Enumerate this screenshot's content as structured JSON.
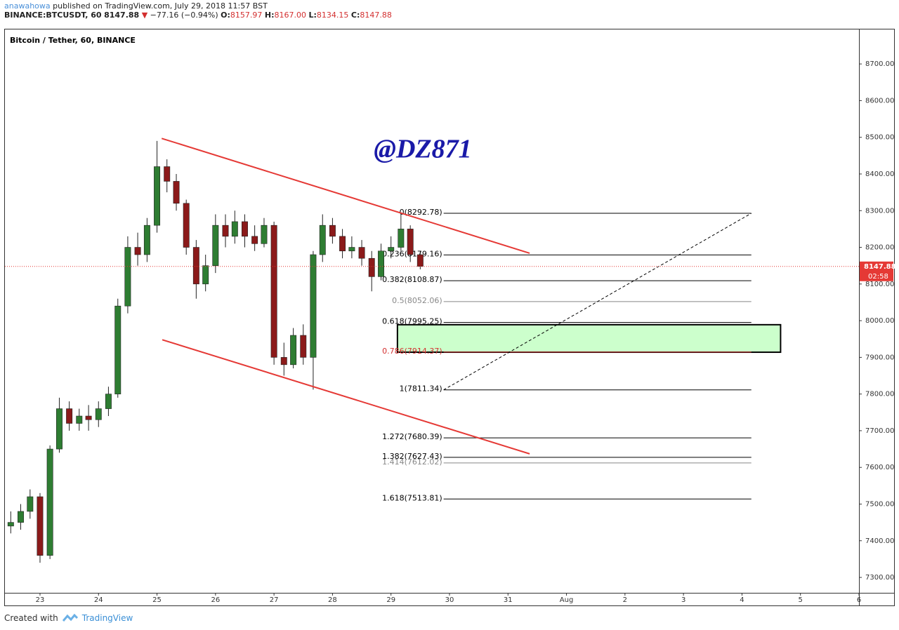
{
  "header": {
    "author": "anawahowa",
    "published": "published on TradingView.com, July 29, 2018 11:57 BST",
    "symbol": "BINANCE:BTCUSDT, 60",
    "last": "8147.88",
    "arrow": "▼",
    "change": "−77.16 (−0.94%)",
    "o_label": "O:",
    "open": "8157.97",
    "h_label": "H:",
    "high": "8167.00",
    "l_label": "L:",
    "low": "8134.15",
    "c_label": "C:",
    "close": "8147.88"
  },
  "footer": {
    "created": "Created with",
    "brand": "TradingView"
  },
  "chart_data": {
    "type": "candlestick",
    "title": "Bitcoin / Tether, 60, BINANCE",
    "watermark": "@DZ871",
    "up_color": "#2e7d32",
    "down_color": "#8b1a1a",
    "x": [
      -0.5,
      -0.33,
      -0.17,
      0,
      0.17,
      0.33,
      0.5,
      0.67,
      0.83,
      1,
      1.17,
      1.33,
      1.5,
      1.67,
      1.83,
      2,
      2.17,
      2.33,
      2.5,
      2.67,
      2.83,
      3,
      3.17,
      3.33,
      3.5,
      3.67,
      3.83,
      4,
      4.17,
      4.33,
      4.5,
      4.67,
      4.83,
      5,
      5.17,
      5.33,
      5.5,
      5.67,
      5.83,
      6,
      6.17,
      6.33,
      6.5
    ],
    "open": [
      7440,
      7450,
      7480,
      7520,
      7360,
      7650,
      7760,
      7720,
      7740,
      7730,
      7760,
      7800,
      8040,
      8200,
      8180,
      8260,
      8420,
      8380,
      8320,
      8200,
      8100,
      8150,
      8260,
      8230,
      8270,
      8230,
      8210,
      8260,
      7900,
      7880,
      7960,
      7900,
      8180,
      8260,
      8230,
      8190,
      8200,
      8170,
      8120,
      8190,
      8200,
      8250,
      8180
    ],
    "high": [
      7480,
      7500,
      7540,
      7530,
      7660,
      7790,
      7780,
      7760,
      7770,
      7780,
      7820,
      8060,
      8230,
      8240,
      8280,
      8490,
      8440,
      8400,
      8330,
      8220,
      8180,
      8290,
      8290,
      8300,
      8290,
      8260,
      8280,
      8270,
      7940,
      7980,
      7990,
      8190,
      8290,
      8280,
      8250,
      8230,
      8220,
      8190,
      8210,
      8230,
      8292,
      8260,
      8190
    ],
    "low": [
      7420,
      7430,
      7460,
      7340,
      7350,
      7640,
      7700,
      7700,
      7700,
      7710,
      7740,
      7790,
      8020,
      8150,
      8160,
      8240,
      8350,
      8300,
      8180,
      8060,
      8080,
      8130,
      8200,
      8210,
      8200,
      8190,
      8200,
      7880,
      7850,
      7870,
      7880,
      7812,
      8160,
      8210,
      8170,
      8170,
      8150,
      8080,
      8110,
      8170,
      8190,
      8160,
      8140
    ],
    "close": [
      7450,
      7480,
      7520,
      7360,
      7650,
      7760,
      7720,
      7740,
      7730,
      7760,
      7800,
      8040,
      8200,
      8180,
      8260,
      8420,
      8380,
      8320,
      8200,
      8100,
      8150,
      8260,
      8230,
      8270,
      8230,
      8210,
      8260,
      7900,
      7880,
      7960,
      7900,
      8180,
      8260,
      8230,
      8190,
      8200,
      8170,
      8120,
      8190,
      8200,
      8250,
      8180,
      8148
    ],
    "xlim": [
      -0.6,
      14
    ],
    "ylim": [
      7258,
      8794
    ],
    "xticks": [
      {
        "value": 0,
        "label": "23"
      },
      {
        "value": 1,
        "label": "24"
      },
      {
        "value": 2,
        "label": "25"
      },
      {
        "value": 3,
        "label": "26"
      },
      {
        "value": 4,
        "label": "27"
      },
      {
        "value": 5,
        "label": "28"
      },
      {
        "value": 6,
        "label": "29"
      },
      {
        "value": 7,
        "label": "30"
      },
      {
        "value": 8,
        "label": "31"
      },
      {
        "value": 9,
        "label": "Aug"
      },
      {
        "value": 10,
        "label": "2"
      },
      {
        "value": 11,
        "label": "3"
      },
      {
        "value": 12,
        "label": "4"
      },
      {
        "value": 13,
        "label": "5"
      },
      {
        "value": 14,
        "label": "6"
      }
    ],
    "yticks": [
      {
        "value": 7300,
        "label": "7300.00"
      },
      {
        "value": 7400,
        "label": "7400.00"
      },
      {
        "value": 7500,
        "label": "7500.00"
      },
      {
        "value": 7600,
        "label": "7600.00"
      },
      {
        "value": 7700,
        "label": "7700.00"
      },
      {
        "value": 7800,
        "label": "7800.00"
      },
      {
        "value": 7900,
        "label": "7900.00"
      },
      {
        "value": 8000,
        "label": "8000.00"
      },
      {
        "value": 8100,
        "label": "8100.00"
      },
      {
        "value": 8200,
        "label": "8200.00"
      },
      {
        "value": 8300,
        "label": "8300.00"
      },
      {
        "value": 8400,
        "label": "8400.00"
      },
      {
        "value": 8500,
        "label": "8500.00"
      },
      {
        "value": 8600,
        "label": "8600.00"
      },
      {
        "value": 8700,
        "label": "8700.00"
      }
    ],
    "fib_range_x": [
      6.9,
      12.16
    ],
    "fib_levels": [
      {
        "value": 8292.78,
        "label": "0(8292.78)",
        "color": "#000000"
      },
      {
        "value": 8179.16,
        "label": "0.236(8179.16)",
        "color": "#000000"
      },
      {
        "value": 8108.87,
        "label": "0.382(8108.87)",
        "color": "#000000"
      },
      {
        "value": 8052.06,
        "label": "0.5(8052.06)",
        "color": "#888888"
      },
      {
        "value": 7995.25,
        "label": "0.618(7995.25)",
        "color": "#000000"
      },
      {
        "value": 7914.37,
        "label": "0.786(7914.37)",
        "color": "#d32f2f"
      },
      {
        "value": 7811.34,
        "label": "1(7811.34)",
        "color": "#000000"
      },
      {
        "value": 7680.39,
        "label": "1.272(7680.39)",
        "color": "#000000"
      },
      {
        "value": 7627.43,
        "label": "1.382(7627.43)",
        "color": "#000000"
      },
      {
        "value": 7612.02,
        "label": "1.414(7612.02)",
        "color": "#888888"
      },
      {
        "value": 7513.81,
        "label": "1.618(7513.81)",
        "color": "#000000"
      }
    ],
    "trendlines": [
      {
        "x": [
          2.08,
          8.37
        ],
        "y": [
          8497,
          8184
        ],
        "color": "#e53935",
        "dashed": false
      },
      {
        "x": [
          2.09,
          8.37
        ],
        "y": [
          7948,
          7637
        ],
        "color": "#e53935",
        "dashed": false
      },
      {
        "x": [
          6.9,
          12.16
        ],
        "y": [
          7811.34,
          8292.78
        ],
        "color": "#000000",
        "dashed": true
      }
    ],
    "zone": {
      "x": [
        6.11,
        12.66
      ],
      "y": [
        7914,
        7989
      ],
      "color": "#ccffcc"
    },
    "last_price": {
      "value": 8147.88,
      "countdown": "02:58",
      "color": "#e53935"
    }
  }
}
